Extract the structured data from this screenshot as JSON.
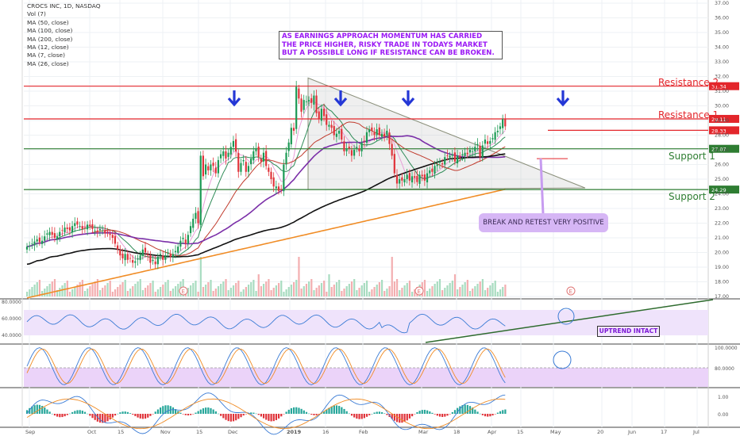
{
  "chart_data": {
    "type": "candlestick",
    "panes": [
      "price",
      "rsi",
      "stoch",
      "macd"
    ],
    "legend": [
      "CROCS INC, 1D, NASDAQ",
      "Vol (7)",
      "MA (50, close)",
      "MA (100, close)",
      "MA (200, close)",
      "MA (12, close)",
      "MA (7, close)",
      "MA (26, close)"
    ],
    "note": "AS EARNINGS APPROACH MOMENTUM HAS CARRIED THE PRICE HIGHER, RISKY TRADE IN TODAYS MARKET BUT A POSSIBLE LONG IF RESISTANCE CAN BE BROKEN.",
    "callout": "BREAK AND RETEST VERY POSITIVE",
    "rsi_note": "UPTREND INTACT",
    "earnings_marker": "E",
    "levels": [
      {
        "label": "Resistance 2",
        "value": 31.34,
        "tag": "31.34",
        "color": "#e3262b"
      },
      {
        "label": "Resistance 1",
        "value": 29.11,
        "tag": "29.11",
        "color": "#e3262b"
      },
      {
        "label": "",
        "value": 28.33,
        "tag": "28.33",
        "color": "#e3262b"
      },
      {
        "label": "Support 1",
        "value": 27.07,
        "tag": "27.07",
        "color": "#2e7d32"
      },
      {
        "label": "Support 2",
        "value": 24.29,
        "tag": "24.29",
        "color": "#2e7d32"
      }
    ],
    "price_axis": {
      "min": 17,
      "max": 37,
      "ticks": [
        "37.00",
        "36.00",
        "35.00",
        "34.00",
        "33.00",
        "32.00",
        "31.00",
        "30.00",
        "29.00",
        "28.00",
        "27.00",
        "26.00",
        "25.00",
        "24.00",
        "23.00",
        "22.00",
        "21.00",
        "20.00",
        "19.00",
        "18.00",
        "17.00"
      ]
    },
    "rsi_axis": {
      "ticks": [
        "80.0000",
        "60.0000",
        "40.0000"
      ],
      "bands": [
        30,
        70
      ]
    },
    "stoch_axis": {
      "ticks": [
        "100.0000",
        "80.0000"
      ],
      "bands": [
        20,
        80
      ]
    },
    "macd_axis": {
      "ticks": [
        "1.00",
        "0.00"
      ]
    },
    "x_labels": [
      "Sep",
      "Oct",
      "15",
      "Nov",
      "15",
      "Dec",
      "2019",
      "16",
      "Feb",
      "Mar",
      "18",
      "Apr",
      "15",
      "May",
      "20",
      "Jun",
      "17",
      "Jul"
    ],
    "series": [
      {
        "name": "Price",
        "values": [
          20.4,
          20.45,
          20.6,
          20.75,
          20.9,
          20.7,
          20.8,
          21.1,
          21.3,
          21.4,
          21.2,
          21.0,
          21.1,
          21.4,
          21.5,
          21.7,
          21.6,
          21.5,
          21.8,
          22.0,
          21.9,
          21.8,
          21.6,
          21.7,
          21.9,
          21.8,
          21.6,
          21.5,
          21.4,
          21.6,
          21.5,
          21.3,
          21.4,
          21.2,
          21.0,
          20.6,
          20.2,
          19.8,
          19.6,
          19.9,
          19.5,
          19.6,
          19.3,
          19.4,
          19.6,
          19.8,
          20.2,
          20.0,
          19.8,
          19.3,
          19.5,
          19.2,
          19.7,
          19.9,
          19.5,
          19.8,
          20.0,
          19.7,
          19.9,
          20.1,
          20.4,
          20.8,
          21.0,
          20.6,
          21.2,
          21.8,
          22.3,
          22.7,
          22.0,
          26.6,
          25.2,
          26.0,
          25.6,
          26.0,
          25.9,
          25.4,
          26.3,
          26.7,
          26.9,
          26.4,
          26.8,
          27.2,
          27.6,
          26.9,
          25.5,
          26.1,
          26.3,
          25.5,
          25.9,
          26.4,
          26.9,
          27.1,
          26.5,
          26.2,
          26.8,
          25.9,
          25.5,
          25.0,
          24.5,
          24.5,
          24.2,
          24.3,
          26.0,
          26.8,
          27.5,
          28.5,
          28.3,
          31.3,
          30.5,
          29.6,
          30.4,
          30.3,
          30.4,
          30.2,
          30.7,
          29.5,
          29.1,
          29.8,
          29.3,
          28.7,
          28.7,
          28.5,
          28.0,
          28.1,
          28.3,
          27.7,
          26.9,
          27.1,
          27.1,
          26.6,
          27.0,
          27.2,
          26.9,
          27.5,
          27.6,
          28.2,
          28.4,
          28.3,
          28.0,
          28.4,
          28.0,
          28.1,
          27.9,
          28.3,
          27.4,
          26.6,
          25.4,
          24.7,
          25.0,
          24.9,
          25.0,
          25.3,
          24.9,
          25.2,
          25.1,
          24.8,
          25.3,
          25.2,
          24.9,
          25.4,
          25.6,
          25.5,
          25.9,
          26.0,
          26.2,
          26.0,
          26.5,
          26.6,
          26.6,
          26.7,
          26.2,
          26.6,
          26.5,
          26.7,
          26.8,
          26.7,
          27.0,
          26.9,
          27.2,
          27.4,
          26.5,
          27.3,
          27.7,
          27.4,
          27.6,
          27.8,
          28.2,
          28.3,
          28.6,
          29.1,
          28.6
        ]
      }
    ]
  }
}
